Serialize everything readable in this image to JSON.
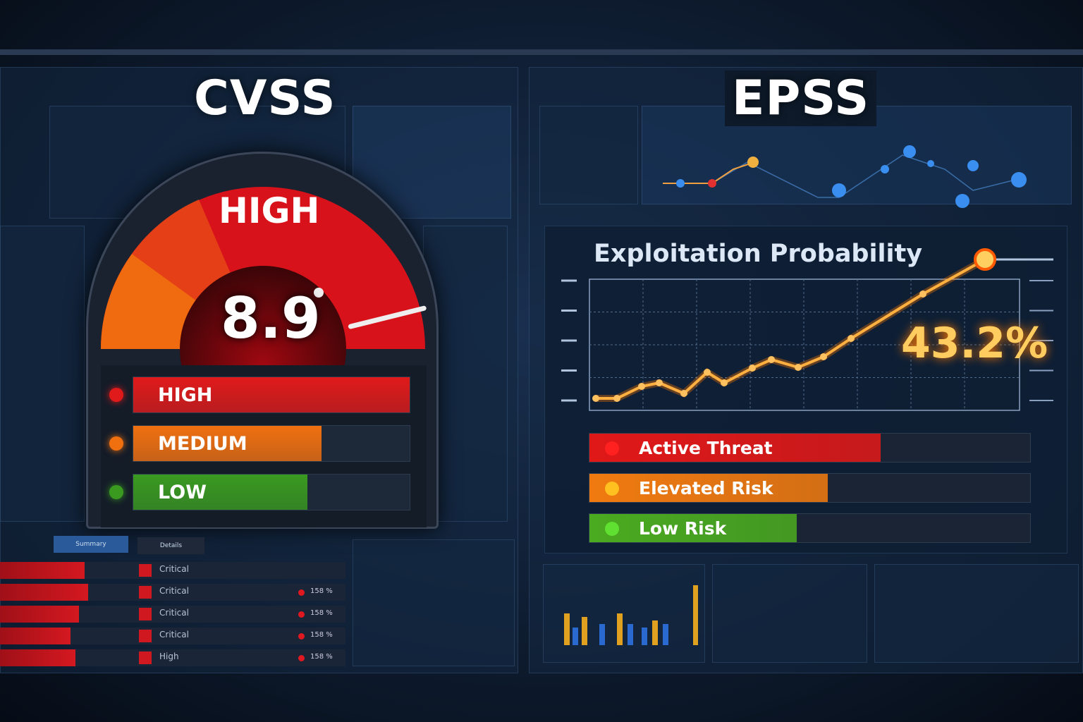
{
  "cvss": {
    "title": "CVSS",
    "gauge_label": "HIGH",
    "score": "8.9",
    "score_max": 10,
    "levels": [
      {
        "label": "HIGH",
        "fill_pct": 100,
        "color": "#e01a1a"
      },
      {
        "label": "MEDIUM",
        "fill_pct": 68,
        "color": "#f07010"
      },
      {
        "label": "LOW",
        "fill_pct": 63,
        "color": "#3a9a20"
      }
    ]
  },
  "epss": {
    "title": "EPSS",
    "chart_title": "Exploitation Probability",
    "value": "43.2%",
    "risk_bars": [
      {
        "label": "Active Threat",
        "fill_pct": 66,
        "color": "#e01818"
      },
      {
        "label": "Elevated Risk",
        "fill_pct": 54,
        "color": "#f07a10"
      },
      {
        "label": "Low Risk",
        "fill_pct": 47,
        "color": "#4aaa20"
      }
    ]
  },
  "background_table": {
    "tabs": [
      "Summary",
      "Details"
    ],
    "rows": [
      {
        "severity": "Critical",
        "pct": ""
      },
      {
        "severity": "Critical",
        "pct": "158 %"
      },
      {
        "severity": "Critical",
        "pct": "158 %"
      },
      {
        "severity": "Critical",
        "pct": "158 %"
      },
      {
        "severity": "High",
        "pct": "158 %"
      }
    ]
  },
  "colors": {
    "high": "#e01a1a",
    "medium": "#f07010",
    "low": "#3a9a20",
    "line": "#ffb040"
  }
}
